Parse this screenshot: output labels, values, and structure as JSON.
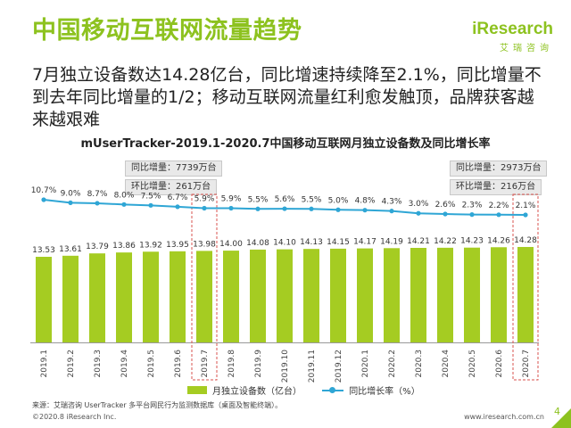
{
  "header": {
    "title": "中国移动互联网流量趋势",
    "logo": "iResearch",
    "logo_sub": "艾瑞咨询"
  },
  "headline": "7月独立设备数达14.28亿台，同比增速持续降至2.1%，同比增量不到去年同比增量的1/2；移动互联网流量红利愈发触顶，品牌获客越来越艰难",
  "callouts": {
    "left_yoy": "同比增量：7739万台",
    "left_mom": "环比增量：261万台",
    "right_yoy": "同比增量：2973万台",
    "right_mom": "环比增量：216万台"
  },
  "chart_data": {
    "type": "bar",
    "title": "mUserTracker-2019.1-2020.7中国移动互联网月独立设备数及同比增长率",
    "categories": [
      "2019.1",
      "2019.2",
      "2019.3",
      "2019.4",
      "2019.5",
      "2019.6",
      "2019.7",
      "2019.8",
      "2019.9",
      "2019.10",
      "2019.11",
      "2019.12",
      "2020.1",
      "2020.2",
      "2020.3",
      "2020.4",
      "2020.5",
      "2020.6",
      "2020.7"
    ],
    "series": [
      {
        "name": "月独立设备数（亿台）",
        "type": "bar",
        "color": "#a5cc22",
        "values": [
          13.53,
          13.61,
          13.79,
          13.86,
          13.92,
          13.95,
          13.98,
          14.0,
          14.08,
          14.1,
          14.13,
          14.15,
          14.17,
          14.19,
          14.21,
          14.22,
          14.23,
          14.26,
          14.28
        ],
        "labels": [
          "13.53",
          "13.61",
          "13.79",
          "13.86",
          "13.92",
          "13.95",
          "13.98",
          "14.00",
          "14.08",
          "14.10",
          "14.13",
          "14.15",
          "14.17",
          "14.19",
          "14.21",
          "14.22",
          "14.23",
          "14.26",
          "14.28"
        ]
      },
      {
        "name": "同比增长率（%）",
        "type": "line",
        "color": "#2fa6d5",
        "values": [
          10.7,
          9.0,
          8.7,
          8.0,
          7.5,
          6.7,
          5.9,
          5.9,
          5.5,
          5.6,
          5.5,
          5.0,
          4.8,
          4.3,
          3.0,
          2.6,
          2.3,
          2.2,
          2.1
        ],
        "labels": [
          "10.7%",
          "9.0%",
          "8.7%",
          "8.0%",
          "7.5%",
          "6.7%",
          "5.9%",
          "5.9%",
          "5.5%",
          "5.6%",
          "5.5%",
          "5.0%",
          "4.8%",
          "4.3%",
          "3.0%",
          "2.6%",
          "2.3%",
          "2.2%",
          "2.1%"
        ]
      }
    ],
    "highlighted_categories": [
      "2019.7",
      "2020.7"
    ]
  },
  "legend": {
    "bar": "月独立设备数（亿台）",
    "line": "同比增长率（%）"
  },
  "footer": {
    "source": "来源：艾瑞咨询 UserTracker 多平台网民行为监测数据库（桌面及智能终端）。",
    "copyright": "©2020.8 iResearch Inc.",
    "website": "www.iresearch.com.cn",
    "page": "4"
  }
}
